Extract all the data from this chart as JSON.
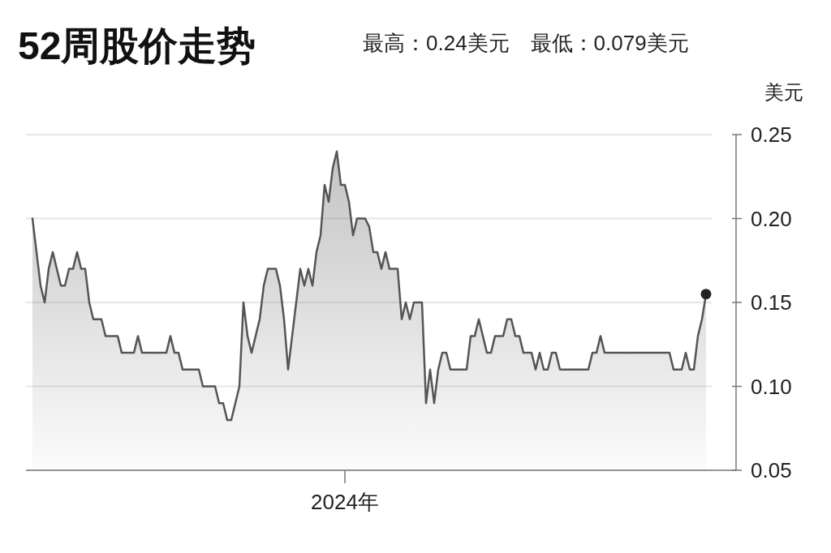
{
  "chart_data": {
    "type": "area",
    "title": "52周股价走势",
    "subtitle": "最高：0.24美元　最低：0.079美元",
    "ylabel": "美元",
    "categories": [
      null,
      null,
      null,
      null,
      null,
      null,
      null,
      null,
      null,
      null,
      null,
      null,
      null,
      null,
      null,
      null,
      null,
      null,
      null,
      null,
      null,
      null,
      null,
      null,
      null,
      null,
      null,
      null,
      null,
      null,
      null,
      null,
      null,
      null,
      null,
      null,
      null,
      null,
      null,
      null,
      null,
      null,
      null,
      null,
      null,
      null,
      null,
      null,
      null,
      null,
      null,
      null,
      null,
      null,
      null,
      null,
      null,
      null,
      null,
      null,
      null,
      null,
      null,
      null,
      null,
      null,
      null,
      null,
      null,
      null,
      null,
      null,
      null,
      null,
      null,
      null,
      null,
      "2024年",
      null,
      null,
      null,
      null,
      null,
      null,
      null,
      null,
      null,
      null,
      null,
      null,
      null,
      null,
      null,
      null,
      null,
      null,
      null,
      null,
      null,
      null,
      null,
      null,
      null,
      null,
      null,
      null,
      null,
      null,
      null,
      null,
      null,
      null,
      null,
      null,
      null,
      null,
      null,
      null,
      null,
      null,
      null,
      null,
      null,
      null,
      null,
      null,
      null,
      null,
      null,
      null,
      null,
      null,
      null,
      null,
      null,
      null,
      null,
      null,
      null,
      null,
      null,
      null,
      null,
      null,
      null,
      null,
      null,
      null,
      null,
      null,
      null,
      null,
      null,
      null,
      null,
      null,
      null,
      null,
      null,
      null,
      null,
      null,
      null,
      null,
      null,
      null,
      null
    ],
    "ylim": [
      0.05,
      0.25
    ],
    "yticks": [
      {
        "value": 0.05,
        "label": "0.05"
      },
      {
        "value": 0.1,
        "label": "0.10"
      },
      {
        "value": 0.15,
        "label": "0.15"
      },
      {
        "value": 0.2,
        "label": "0.20"
      },
      {
        "value": 0.25,
        "label": "0.25"
      }
    ],
    "grid": "y",
    "series": [
      {
        "color": "#555555",
        "values": [
          0.2,
          0.18,
          0.16,
          0.15,
          0.17,
          0.18,
          0.17,
          0.16,
          0.16,
          0.17,
          0.17,
          0.18,
          0.17,
          0.17,
          0.15,
          0.14,
          0.14,
          0.14,
          0.13,
          0.13,
          0.13,
          0.13,
          0.12,
          0.12,
          0.12,
          0.12,
          0.13,
          0.12,
          0.12,
          0.12,
          0.12,
          0.12,
          0.12,
          0.12,
          0.13,
          0.12,
          0.12,
          0.11,
          0.11,
          0.11,
          0.11,
          0.11,
          0.1,
          0.1,
          0.1,
          0.1,
          0.09,
          0.09,
          0.08,
          0.08,
          0.09,
          0.1,
          0.15,
          0.13,
          0.12,
          0.13,
          0.14,
          0.16,
          0.17,
          0.17,
          0.17,
          0.16,
          0.14,
          0.11,
          0.13,
          0.15,
          0.17,
          0.16,
          0.17,
          0.16,
          0.18,
          0.19,
          0.22,
          0.21,
          0.23,
          0.24,
          0.22,
          0.22,
          0.21,
          0.19,
          0.2,
          0.2,
          0.2,
          0.195,
          0.18,
          0.18,
          0.17,
          0.18,
          0.17,
          0.17,
          0.17,
          0.14,
          0.15,
          0.14,
          0.15,
          0.15,
          0.15,
          0.09,
          0.11,
          0.09,
          0.11,
          0.12,
          0.12,
          0.11,
          0.11,
          0.11,
          0.11,
          0.11,
          0.13,
          0.13,
          0.14,
          0.13,
          0.12,
          0.12,
          0.13,
          0.13,
          0.13,
          0.14,
          0.14,
          0.13,
          0.13,
          0.12,
          0.12,
          0.12,
          0.11,
          0.12,
          0.11,
          0.11,
          0.12,
          0.12,
          0.11,
          0.11,
          0.11,
          0.11,
          0.11,
          0.11,
          0.11,
          0.11,
          0.12,
          0.12,
          0.13,
          0.12,
          0.12,
          0.12,
          0.12,
          0.12,
          0.12,
          0.12,
          0.12,
          0.12,
          0.12,
          0.12,
          0.12,
          0.12,
          0.12,
          0.12,
          0.12,
          0.12,
          0.11,
          0.11,
          0.11,
          0.12,
          0.11,
          0.11,
          0.13,
          0.14,
          0.155
        ]
      },
      {
        "type": "scatter",
        "color": "#222222",
        "marker": "circle",
        "values": [
          null,
          null,
          null,
          null,
          null,
          null,
          null,
          null,
          null,
          null,
          null,
          null,
          null,
          null,
          null,
          null,
          null,
          null,
          null,
          null,
          null,
          null,
          null,
          null,
          null,
          null,
          null,
          null,
          null,
          null,
          null,
          null,
          null,
          null,
          null,
          null,
          null,
          null,
          null,
          null,
          null,
          null,
          null,
          null,
          null,
          null,
          null,
          null,
          null,
          null,
          null,
          null,
          null,
          null,
          null,
          null,
          null,
          null,
          null,
          null,
          null,
          null,
          null,
          null,
          null,
          null,
          null,
          null,
          null,
          null,
          null,
          null,
          null,
          null,
          null,
          null,
          null,
          null,
          null,
          null,
          null,
          null,
          null,
          null,
          null,
          null,
          null,
          null,
          null,
          null,
          null,
          null,
          null,
          null,
          null,
          null,
          null,
          null,
          null,
          null,
          null,
          null,
          null,
          null,
          null,
          null,
          null,
          null,
          null,
          null,
          null,
          null,
          null,
          null,
          null,
          null,
          null,
          null,
          null,
          null,
          null,
          null,
          null,
          null,
          null,
          null,
          null,
          null,
          null,
          null,
          null,
          null,
          null,
          null,
          null,
          null,
          null,
          null,
          null,
          null,
          null,
          null,
          null,
          null,
          null,
          null,
          null,
          null,
          null,
          null,
          null,
          null,
          null,
          null,
          null,
          null,
          null,
          null,
          null,
          null,
          null,
          null,
          null,
          null,
          null,
          null,
          0.155
        ]
      }
    ]
  }
}
